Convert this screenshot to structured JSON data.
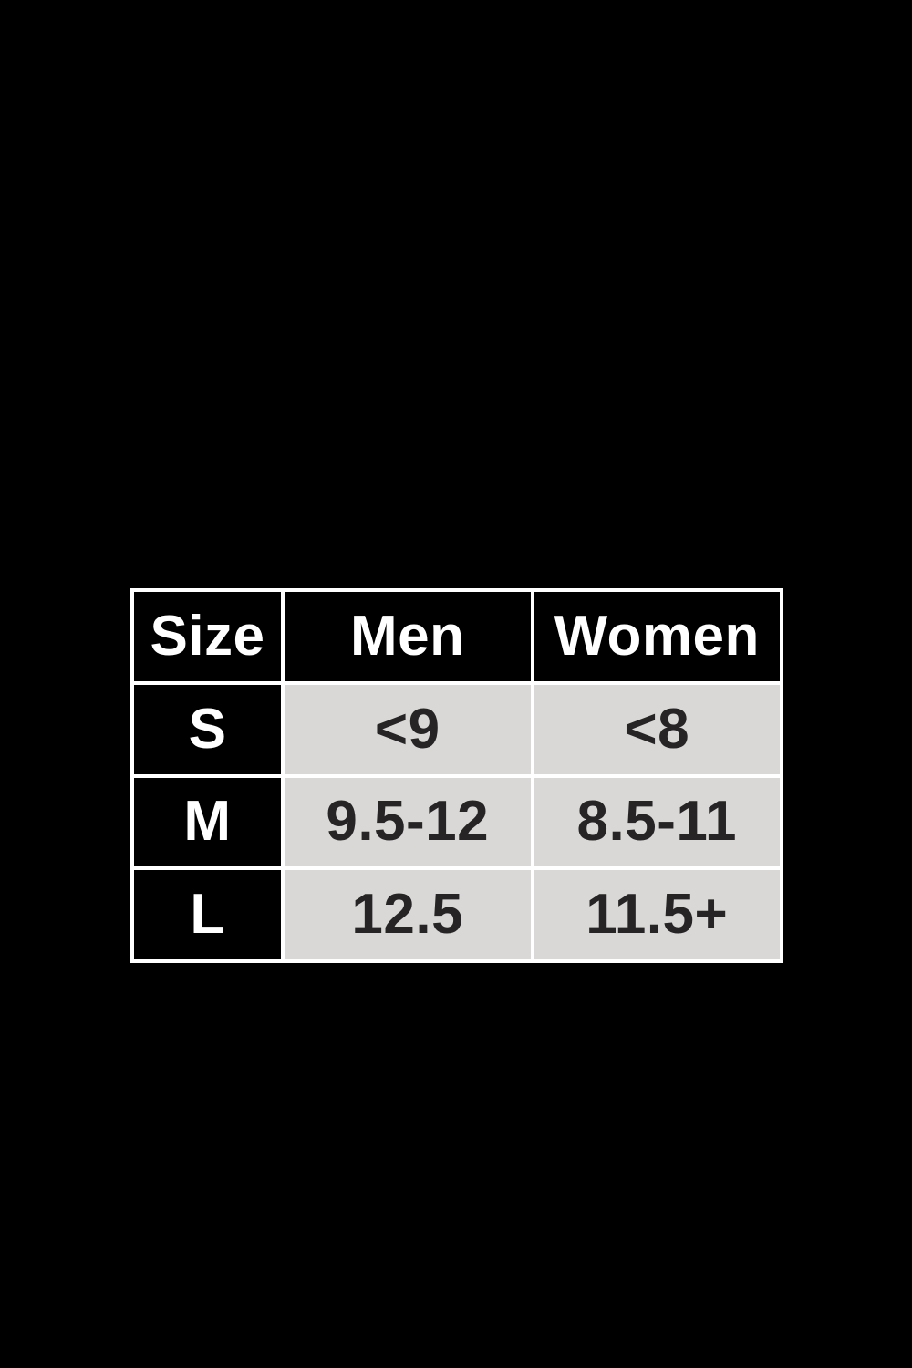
{
  "colors": {
    "page_bg": "#000000",
    "table_border": "#ffffff",
    "header_bg": "#000000",
    "header_text": "#ffffff",
    "label_bg": "#000000",
    "label_text": "#ffffff",
    "cell_bg": "#d9d8d6",
    "cell_text": "#272425"
  },
  "chart_data": {
    "type": "table",
    "columns": [
      "Size",
      "Men",
      "Women"
    ],
    "rows": [
      [
        "S",
        "<9",
        "<8"
      ],
      [
        "M",
        "9.5-12",
        "8.5-11"
      ],
      [
        "L",
        "12.5",
        "11.5+"
      ]
    ]
  },
  "table": {
    "header": {
      "size": "Size",
      "men": "Men",
      "women": "Women"
    },
    "rows": [
      {
        "label": "S",
        "men": "<9",
        "women": "<8"
      },
      {
        "label": "M",
        "men": "9.5-12",
        "women": "8.5-11"
      },
      {
        "label": "L",
        "men": "12.5",
        "women": "11.5+"
      }
    ]
  }
}
